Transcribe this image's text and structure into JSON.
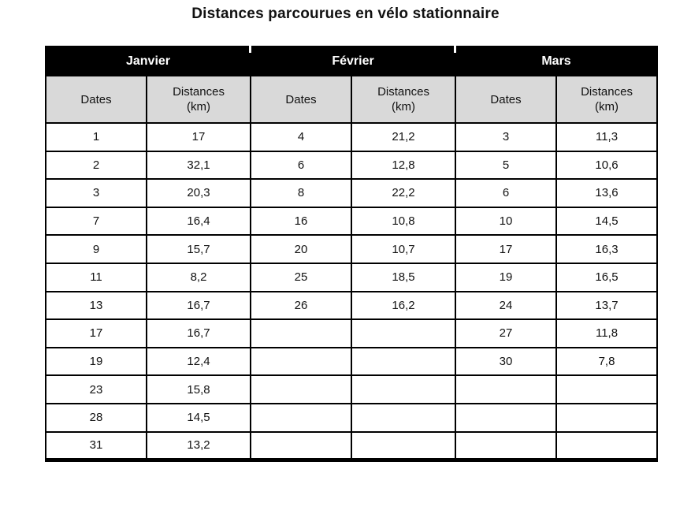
{
  "title": "Distances parcourues en vélo stationnaire",
  "colors": {
    "header_bg": "#000000",
    "header_text": "#ffffff",
    "subheader_bg": "#d9d9d9",
    "border": "#000000",
    "page_bg": "#ffffff"
  },
  "table": {
    "months": [
      "Janvier",
      "Février",
      "Mars"
    ],
    "date_label": "Dates",
    "distance_label": "Distances",
    "distance_unit": "(km)",
    "rows": [
      [
        "1",
        "17",
        "4",
        "21,2",
        "3",
        "11,3"
      ],
      [
        "2",
        "32,1",
        "6",
        "12,8",
        "5",
        "10,6"
      ],
      [
        "3",
        "20,3",
        "8",
        "22,2",
        "6",
        "13,6"
      ],
      [
        "7",
        "16,4",
        "16",
        "10,8",
        "10",
        "14,5"
      ],
      [
        "9",
        "15,7",
        "20",
        "10,7",
        "17",
        "16,3"
      ],
      [
        "11",
        "8,2",
        "25",
        "18,5",
        "19",
        "16,5"
      ],
      [
        "13",
        "16,7",
        "26",
        "16,2",
        "24",
        "13,7"
      ],
      [
        "17",
        "16,7",
        "",
        "",
        "27",
        "11,8"
      ],
      [
        "19",
        "12,4",
        "",
        "",
        "30",
        "7,8"
      ],
      [
        "23",
        "15,8",
        "",
        "",
        "",
        ""
      ],
      [
        "28",
        "14,5",
        "",
        "",
        "",
        ""
      ],
      [
        "31",
        "13,2",
        "",
        "",
        "",
        ""
      ]
    ]
  },
  "chart_data": {
    "type": "table",
    "title": "Distances parcourues en vélo stationnaire",
    "columns": [
      "Dates",
      "Distances (km)",
      "Dates",
      "Distances (km)",
      "Dates",
      "Distances (km)"
    ],
    "groups": [
      {
        "month": "Janvier",
        "dates": [
          1,
          2,
          3,
          7,
          9,
          11,
          13,
          17,
          19,
          23,
          28,
          31
        ],
        "distances_km": [
          17,
          32.1,
          20.3,
          16.4,
          15.7,
          8.2,
          16.7,
          16.7,
          12.4,
          15.8,
          14.5,
          13.2
        ]
      },
      {
        "month": "Février",
        "dates": [
          4,
          6,
          8,
          16,
          20,
          25,
          26
        ],
        "distances_km": [
          21.2,
          12.8,
          22.2,
          10.8,
          10.7,
          18.5,
          16.2
        ]
      },
      {
        "month": "Mars",
        "dates": [
          3,
          5,
          6,
          10,
          17,
          19,
          24,
          27,
          30
        ],
        "distances_km": [
          11.3,
          10.6,
          13.6,
          14.5,
          16.3,
          16.5,
          13.7,
          11.8,
          7.8
        ]
      }
    ]
  }
}
